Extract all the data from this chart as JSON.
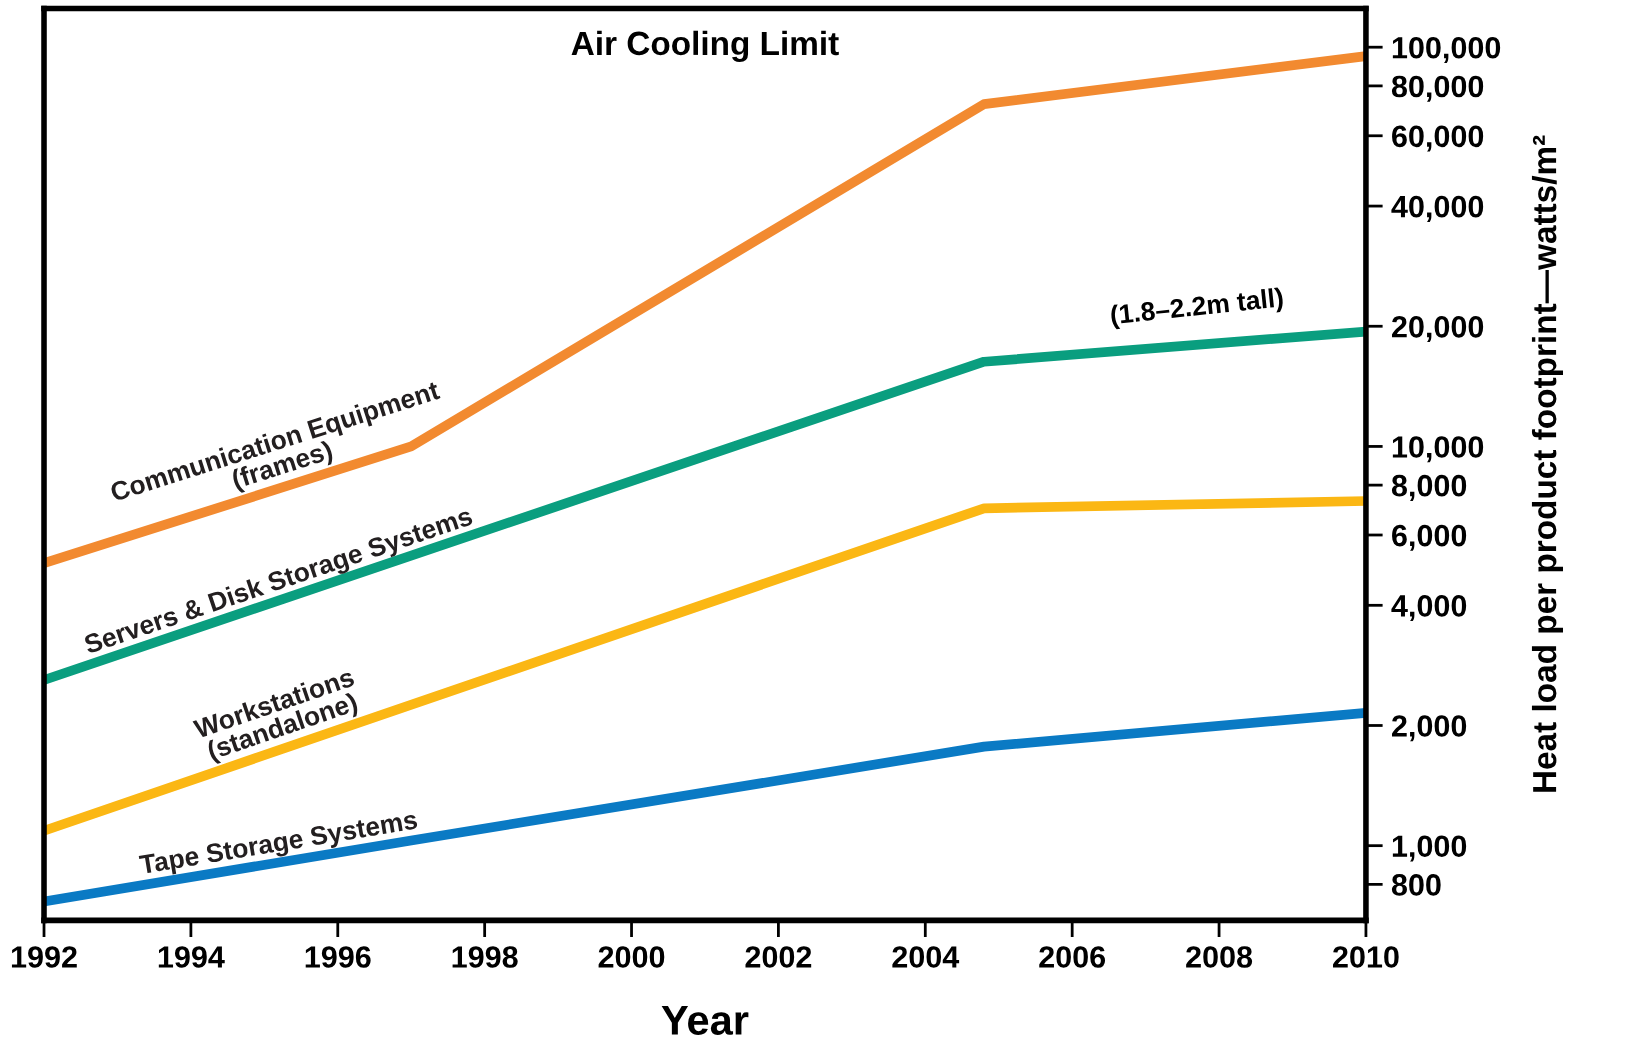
{
  "chart_data": {
    "type": "line",
    "title": "Air Cooling Limit",
    "xlabel": "Year",
    "ylabel": "Heat load per product footprint—watts/m²",
    "log": "y",
    "grid": false,
    "legend": false,
    "marker": "none",
    "line_style": "solid",
    "xlim": [
      1992,
      2010
    ],
    "xticks": [
      1992,
      1994,
      1996,
      1998,
      2000,
      2002,
      2004,
      2006,
      2008,
      2010
    ],
    "ylim": [
      650,
      125000
    ],
    "yticks": [
      {
        "value": 800,
        "label": "800"
      },
      {
        "value": 1000,
        "label": "1,000"
      },
      {
        "value": 2000,
        "label": "2,000"
      },
      {
        "value": 4000,
        "label": "4,000"
      },
      {
        "value": 6000,
        "label": "6,000"
      },
      {
        "value": 8000,
        "label": "8,000"
      },
      {
        "value": 10000,
        "label": "10,000"
      },
      {
        "value": 20000,
        "label": "20,000"
      },
      {
        "value": 40000,
        "label": "40,000"
      },
      {
        "value": 60000,
        "label": "60,000"
      },
      {
        "value": 80000,
        "label": "80,000"
      },
      {
        "value": 100000,
        "label": "100,000"
      }
    ],
    "series": [
      {
        "name": "Communication Equipment\n(frames)",
        "color": "#f28a30",
        "x": [
          1992,
          1997,
          2004.8,
          2010
        ],
        "values": [
          5100,
          10000,
          72000,
          95000
        ]
      },
      {
        "name": "Servers & Disk Storage Systems",
        "color": "#0a9e7f",
        "x": [
          1992,
          2004.8,
          2010
        ],
        "values": [
          2600,
          16300,
          19400
        ]
      },
      {
        "name": "Workstations\n(standalone)",
        "color": "#fbb714",
        "x": [
          1992,
          2004.8,
          2010
        ],
        "values": [
          1090,
          7000,
          7300
        ]
      },
      {
        "name": "Tape Storage Systems",
        "color": "#0a7ac4",
        "x": [
          1992,
          1997,
          2004.8,
          2010
        ],
        "values": [
          725,
          1030,
          1770,
          2150
        ]
      }
    ],
    "annotations": [
      {
        "text": "(1.8–2.2m tall)",
        "x": 2007.7,
        "y": 18000
      }
    ]
  }
}
